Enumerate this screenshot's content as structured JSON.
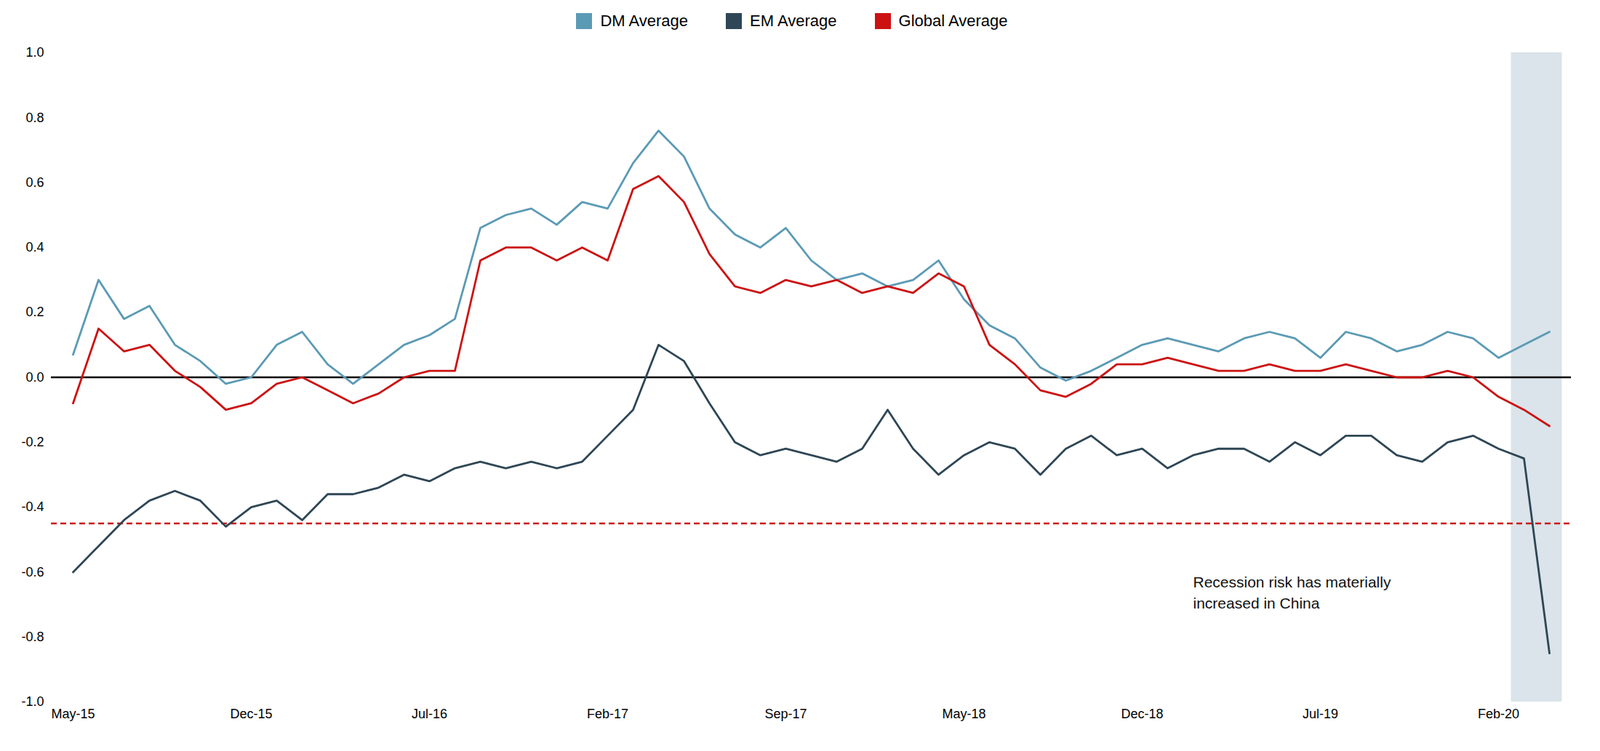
{
  "chart_data": {
    "type": "line",
    "categories": [
      "May-15",
      null,
      null,
      null,
      null,
      null,
      null,
      "Dec-15",
      null,
      null,
      null,
      null,
      null,
      null,
      "Jul-16",
      null,
      null,
      null,
      null,
      null,
      null,
      "Feb-17",
      null,
      null,
      null,
      null,
      null,
      null,
      "Sep-17",
      null,
      null,
      null,
      null,
      null,
      null,
      "May-18",
      null,
      null,
      null,
      null,
      null,
      null,
      "Dec-18",
      null,
      null,
      null,
      null,
      null,
      null,
      "Jul-19",
      null,
      null,
      null,
      null,
      null,
      null,
      "Feb-20",
      null,
      null
    ],
    "series": [
      {
        "name": "DM Average",
        "color": "#5b9ab5",
        "values": [
          0.07,
          0.3,
          0.18,
          0.22,
          0.1,
          0.05,
          -0.02,
          0.0,
          0.1,
          0.14,
          0.04,
          -0.02,
          0.04,
          0.1,
          0.13,
          0.18,
          0.46,
          0.5,
          0.52,
          0.47,
          0.54,
          0.52,
          0.66,
          0.76,
          0.68,
          0.52,
          0.44,
          0.4,
          0.46,
          0.36,
          0.3,
          0.32,
          0.28,
          0.3,
          0.36,
          0.24,
          0.16,
          0.12,
          0.03,
          -0.01,
          0.02,
          0.06,
          0.1,
          0.12,
          0.1,
          0.08,
          0.12,
          0.14,
          0.12,
          0.06,
          0.14,
          0.12,
          0.08,
          0.1,
          0.14,
          0.12,
          0.06,
          0.1,
          0.14
        ]
      },
      {
        "name": "EM Average",
        "color": "#2e4655",
        "values": [
          -0.6,
          -0.52,
          -0.44,
          -0.38,
          -0.35,
          -0.38,
          -0.46,
          -0.4,
          -0.38,
          -0.44,
          -0.36,
          -0.36,
          -0.34,
          -0.3,
          -0.32,
          -0.28,
          -0.26,
          -0.28,
          -0.26,
          -0.28,
          -0.26,
          -0.18,
          -0.1,
          0.1,
          0.05,
          -0.08,
          -0.2,
          -0.24,
          -0.22,
          -0.24,
          -0.26,
          -0.22,
          -0.1,
          -0.22,
          -0.3,
          -0.24,
          -0.2,
          -0.22,
          -0.3,
          -0.22,
          -0.18,
          -0.24,
          -0.22,
          -0.28,
          -0.24,
          -0.22,
          -0.22,
          -0.26,
          -0.2,
          -0.24,
          -0.18,
          -0.18,
          -0.24,
          -0.26,
          -0.2,
          -0.18,
          -0.22,
          -0.25,
          -0.85
        ]
      },
      {
        "name": "Global Average",
        "color": "#cc1111",
        "values": [
          -0.08,
          0.15,
          0.08,
          0.1,
          0.02,
          -0.03,
          -0.1,
          -0.08,
          -0.02,
          0.0,
          -0.04,
          -0.08,
          -0.05,
          0.0,
          0.02,
          0.02,
          0.36,
          0.4,
          0.4,
          0.36,
          0.4,
          0.36,
          0.58,
          0.62,
          0.54,
          0.38,
          0.28,
          0.26,
          0.3,
          0.28,
          0.3,
          0.26,
          0.28,
          0.26,
          0.32,
          0.28,
          0.1,
          0.04,
          -0.04,
          -0.06,
          -0.02,
          0.04,
          0.04,
          0.06,
          0.04,
          0.02,
          0.02,
          0.04,
          0.02,
          0.02,
          0.04,
          0.02,
          0.0,
          0.0,
          0.02,
          0.0,
          -0.06,
          -0.1,
          -0.15
        ]
      }
    ],
    "ylim": [
      -1.0,
      1.0
    ],
    "yticks": [
      {
        "value": -1.0,
        "label": "-1.0"
      },
      -0.8,
      -0.6,
      -0.4,
      -0.2,
      {
        "value": 0.0,
        "label": "0.0"
      },
      0.2,
      0.4,
      0.6,
      0.8,
      {
        "value": 1.0,
        "label": "1.0"
      }
    ],
    "reference_lines": [
      {
        "value": 0,
        "color": "#000000"
      },
      {
        "value": -0.45,
        "color": "#cc1111",
        "line_style": "dashed"
      }
    ],
    "highlight": {
      "start": 57,
      "color": "#adc4d0"
    },
    "annotations": [
      {
        "text": "Recession risk has materially\nincreased in China",
        "x": 44,
        "y": -0.6
      }
    ],
    "legend": "top",
    "grid": false
  }
}
